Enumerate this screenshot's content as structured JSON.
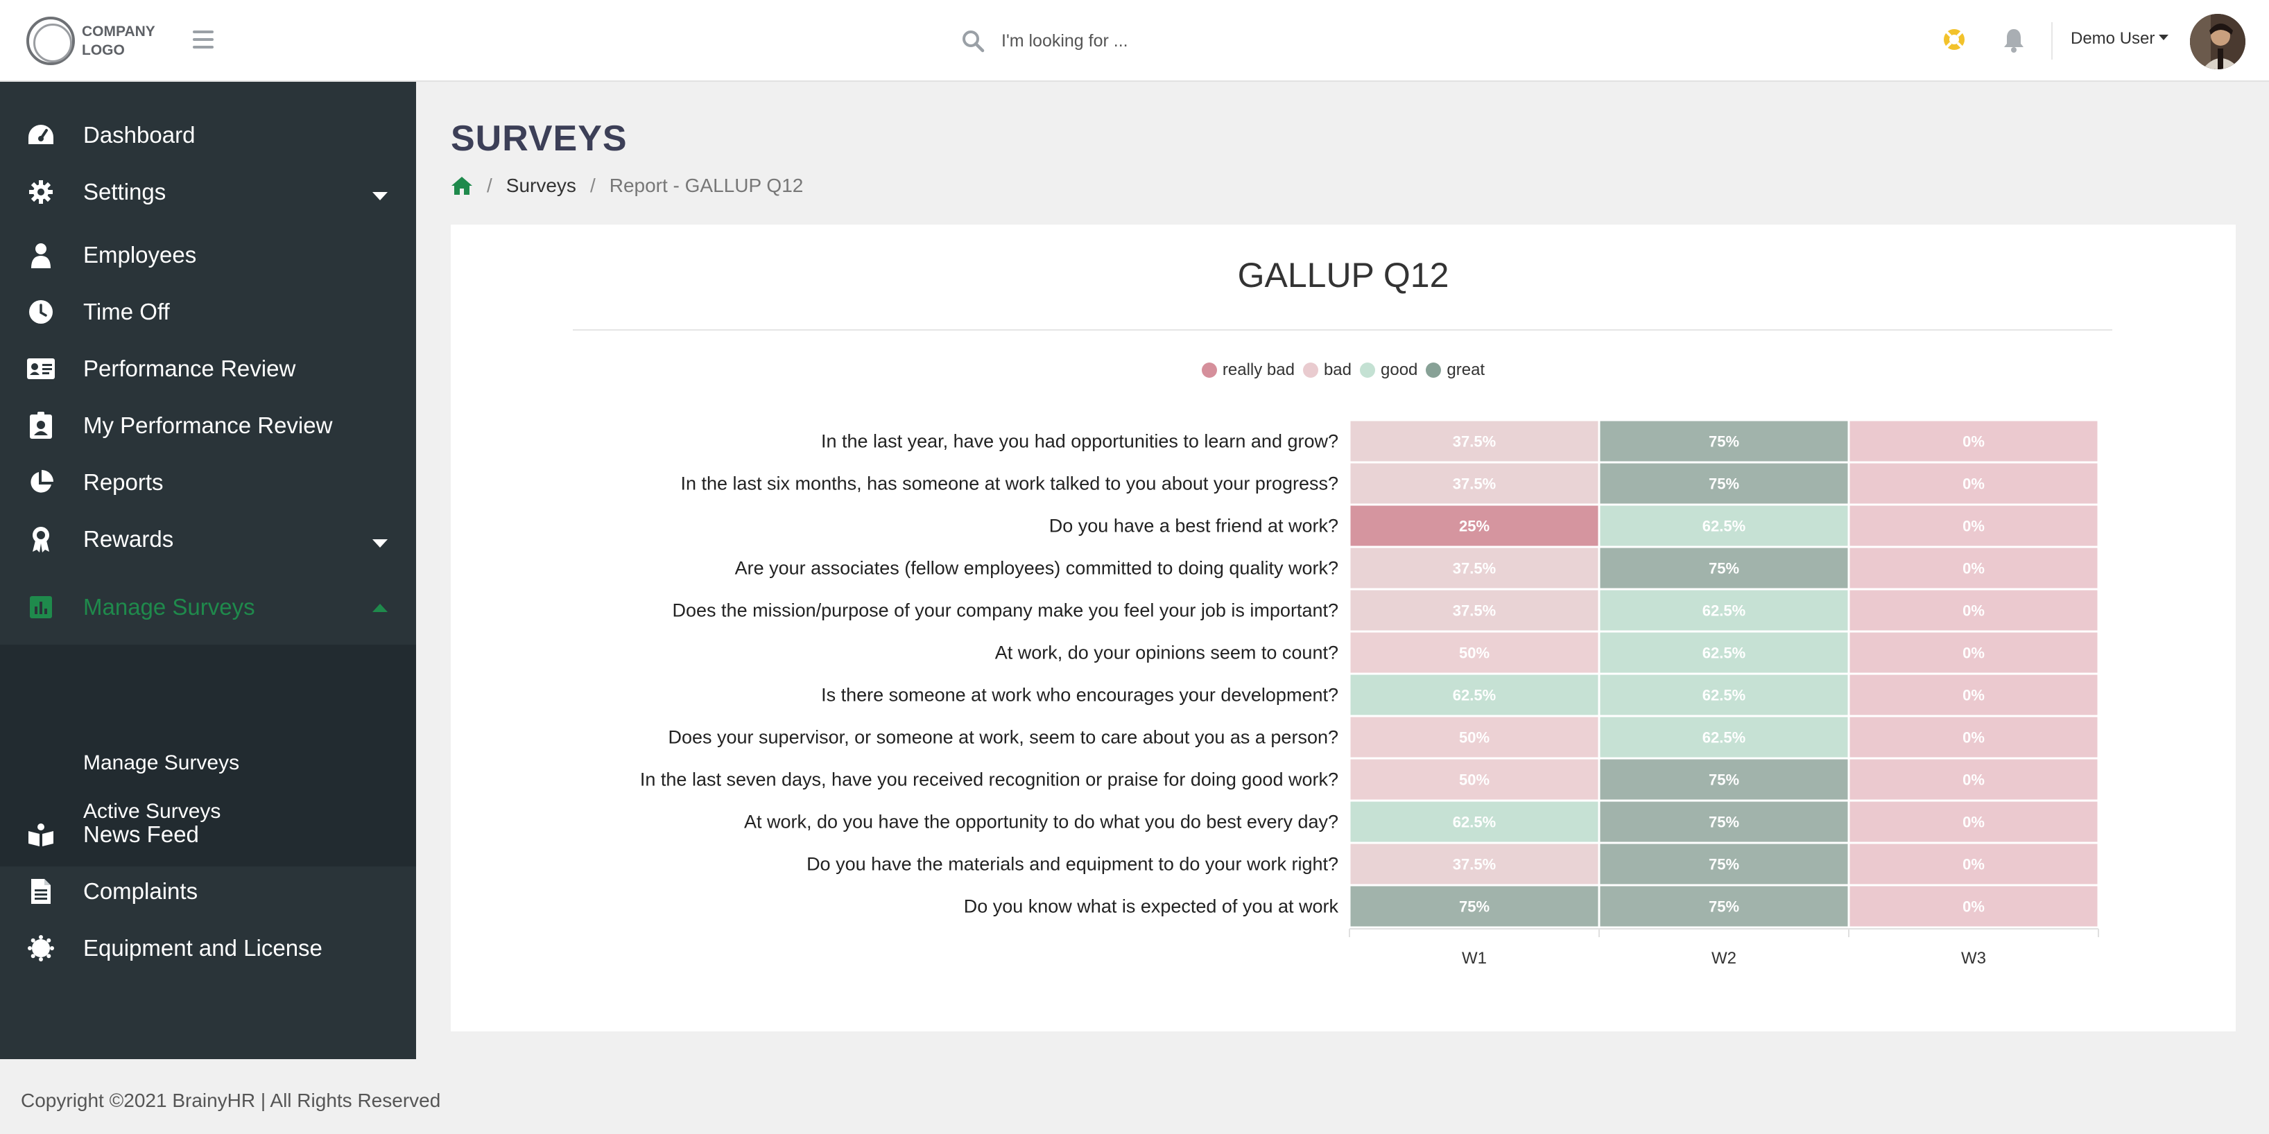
{
  "header": {
    "logo_line1": "COMPANY",
    "logo_line2": "LOGO",
    "search_placeholder": "I'm looking for ...",
    "user_name": "Demo User"
  },
  "sidebar": {
    "items": [
      {
        "label": "Dashboard",
        "icon": "dashboard-icon"
      },
      {
        "label": "Settings",
        "icon": "gear-icon"
      },
      {
        "label": "Employees",
        "icon": "user-icon"
      },
      {
        "label": "Time Off",
        "icon": "clock-icon"
      },
      {
        "label": "Performance Review",
        "icon": "id-card-icon"
      },
      {
        "label": "My Performance Review",
        "icon": "id-badge-icon"
      },
      {
        "label": "Reports",
        "icon": "pie-chart-icon"
      },
      {
        "label": "Rewards",
        "icon": "award-icon"
      },
      {
        "label": "Manage Surveys",
        "icon": "bar-chart-icon"
      },
      {
        "label": "News Feed",
        "icon": "newspaper-icon"
      },
      {
        "label": "Complaints",
        "icon": "file-icon"
      },
      {
        "label": "Equipment and License",
        "icon": "cog-badge-icon"
      }
    ],
    "subitems": [
      "Manage Surveys",
      "Active Surveys"
    ],
    "active_color": "#1f8a4c"
  },
  "page": {
    "title": "SURVEYS",
    "breadcrumb": [
      "Surveys",
      "Report - GALLUP Q12"
    ]
  },
  "report": {
    "title": "GALLUP Q12"
  },
  "chart_data": {
    "type": "heatmap",
    "title": "GALLUP Q12",
    "legend": [
      {
        "name": "really bad",
        "color": "#d58f9b"
      },
      {
        "name": "bad",
        "color": "#e9cbcf"
      },
      {
        "name": "good",
        "color": "#c4e1d3"
      },
      {
        "name": "great",
        "color": "#87a196"
      }
    ],
    "columns": [
      "W1",
      "W2",
      "W3"
    ],
    "rows": [
      {
        "question": "In the last year, have you had opportunities to learn and grow?",
        "values": [
          "37.5%",
          "75%",
          "0%"
        ]
      },
      {
        "question": "In the last six months, has someone at work talked to you about your progress?",
        "values": [
          "37.5%",
          "75%",
          "0%"
        ]
      },
      {
        "question": "Do you have a best friend at work?",
        "values": [
          "25%",
          "62.5%",
          "0%"
        ]
      },
      {
        "question": "Are your associates (fellow employees) committed to doing quality work?",
        "values": [
          "37.5%",
          "75%",
          "0%"
        ]
      },
      {
        "question": "Does the mission/purpose of your company make you feel your job is important?",
        "values": [
          "37.5%",
          "62.5%",
          "0%"
        ]
      },
      {
        "question": "At work, do your opinions seem to count?",
        "values": [
          "50%",
          "62.5%",
          "0%"
        ]
      },
      {
        "question": "Is there someone at work who encourages your development?",
        "values": [
          "62.5%",
          "62.5%",
          "0%"
        ]
      },
      {
        "question": "Does your supervisor, or someone at work, seem to care about you as a person?",
        "values": [
          "50%",
          "62.5%",
          "0%"
        ]
      },
      {
        "question": "In the last seven days, have you received recognition or praise for doing good work?",
        "values": [
          "50%",
          "75%",
          "0%"
        ]
      },
      {
        "question": "At work, do you have the opportunity to do what you do best every day?",
        "values": [
          "62.5%",
          "75%",
          "0%"
        ]
      },
      {
        "question": "Do you have the materials and equipment to do your work right?",
        "values": [
          "37.5%",
          "75%",
          "0%"
        ]
      },
      {
        "question": "Do you know what is expected of you at work",
        "values": [
          "75%",
          "75%",
          "0%"
        ]
      }
    ]
  },
  "footer": {
    "copyright": "Copyright ©2021 BrainyHR | All Rights Reserved"
  }
}
